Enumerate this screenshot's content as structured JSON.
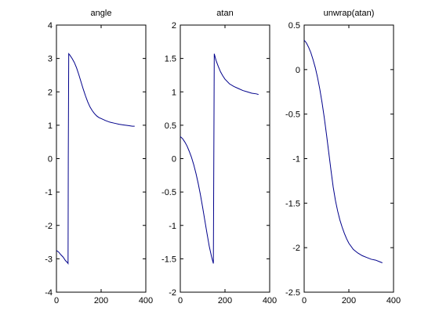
{
  "chart_data": [
    {
      "type": "line",
      "title": "angle",
      "xlabel": "",
      "ylabel": "",
      "xlim": [
        0,
        400
      ],
      "ylim": [
        -4,
        4
      ],
      "xticks": [
        0,
        200,
        400
      ],
      "yticks": [
        -4,
        -3,
        -2,
        -1,
        0,
        1,
        2,
        3,
        4
      ],
      "grid": false,
      "line_color": "#00008b",
      "series": [
        {
          "x": [
            0,
            10,
            20,
            30,
            40,
            50,
            52,
            53,
            55,
            60,
            70,
            80,
            90,
            100,
            110,
            120,
            130,
            140,
            150,
            160,
            170,
            180,
            190,
            200,
            220,
            240,
            260,
            280,
            300,
            320,
            340,
            350
          ],
          "y": [
            -2.75,
            -2.8,
            -2.88,
            -2.95,
            -3.05,
            -3.12,
            -3.14,
            0,
            3.14,
            3.1,
            3.0,
            2.88,
            2.72,
            2.52,
            2.3,
            2.08,
            1.88,
            1.7,
            1.55,
            1.44,
            1.35,
            1.28,
            1.23,
            1.2,
            1.14,
            1.09,
            1.06,
            1.03,
            1.01,
            0.99,
            0.97,
            0.97
          ]
        }
      ]
    },
    {
      "type": "line",
      "title": "atan",
      "xlabel": "",
      "ylabel": "",
      "xlim": [
        0,
        400
      ],
      "ylim": [
        -2,
        2
      ],
      "xticks": [
        0,
        200,
        400
      ],
      "yticks": [
        -2,
        -1.5,
        -1,
        -0.5,
        0,
        0.5,
        1,
        1.5,
        2
      ],
      "grid": false,
      "line_color": "#00008b",
      "series": [
        {
          "x": [
            0,
            10,
            20,
            30,
            40,
            50,
            60,
            70,
            80,
            90,
            100,
            110,
            120,
            130,
            140,
            148,
            150,
            152,
            160,
            170,
            180,
            190,
            200,
            220,
            240,
            260,
            280,
            300,
            320,
            340,
            350
          ],
          "y": [
            0.33,
            0.3,
            0.25,
            0.19,
            0.11,
            0.02,
            -0.09,
            -0.22,
            -0.37,
            -0.54,
            -0.73,
            -0.93,
            -1.13,
            -1.32,
            -1.47,
            -1.57,
            0,
            1.57,
            1.47,
            1.38,
            1.3,
            1.24,
            1.19,
            1.12,
            1.08,
            1.05,
            1.02,
            1.0,
            0.98,
            0.97,
            0.96
          ]
        }
      ]
    },
    {
      "type": "line",
      "title": "unwrap(atan)",
      "xlabel": "",
      "ylabel": "",
      "xlim": [
        0,
        400
      ],
      "ylim": [
        -2.5,
        0.5
      ],
      "xticks": [
        0,
        200,
        400
      ],
      "yticks": [
        -2.5,
        -2,
        -1.5,
        -1,
        -0.5,
        0,
        0.5
      ],
      "grid": false,
      "line_color": "#00008b",
      "series": [
        {
          "x": [
            0,
            10,
            20,
            30,
            40,
            50,
            60,
            70,
            80,
            90,
            100,
            110,
            120,
            130,
            140,
            150,
            160,
            170,
            180,
            190,
            200,
            220,
            240,
            260,
            280,
            300,
            320,
            340,
            350
          ],
          "y": [
            0.33,
            0.3,
            0.25,
            0.19,
            0.11,
            0.02,
            -0.09,
            -0.22,
            -0.37,
            -0.54,
            -0.73,
            -0.93,
            -1.13,
            -1.32,
            -1.47,
            -1.59,
            -1.69,
            -1.77,
            -1.84,
            -1.9,
            -1.95,
            -2.02,
            -2.06,
            -2.09,
            -2.11,
            -2.13,
            -2.14,
            -2.16,
            -2.17
          ]
        }
      ]
    }
  ]
}
